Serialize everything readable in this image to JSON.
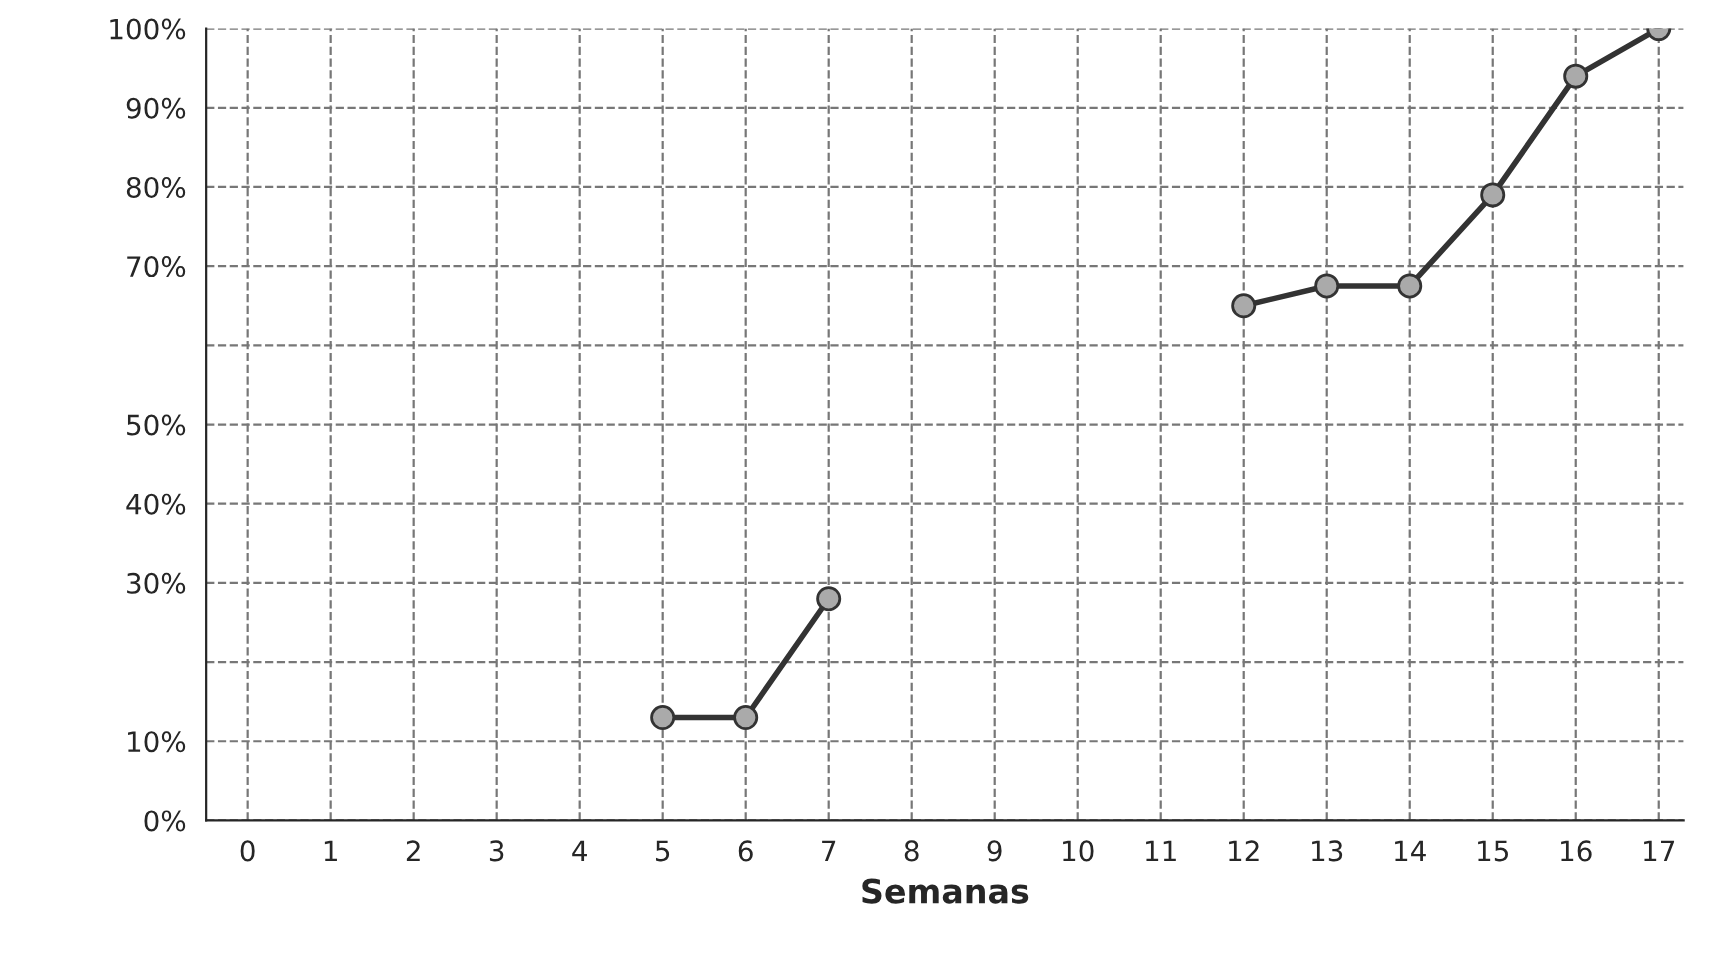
{
  "chart_data": {
    "type": "line",
    "xlabel": "Semanas",
    "categories": [
      "0",
      "1",
      "2",
      "3",
      "4",
      "5",
      "6",
      "7",
      "8",
      "9",
      "10",
      "11",
      "12",
      "13",
      "14",
      "15",
      "16",
      "17"
    ],
    "series": [
      {
        "color": "#333333",
        "values": [
          null,
          null,
          null,
          null,
          null,
          13,
          13,
          28,
          null,
          null,
          null,
          null,
          65,
          67.5,
          67.5,
          79,
          94,
          100
        ]
      }
    ],
    "ylim": [
      0,
      100
    ],
    "yticks": [
      {
        "value": 0,
        "label": "0%"
      },
      {
        "value": 10,
        "label": "10%"
      },
      {
        "value": 20,
        "label": null
      },
      {
        "value": 30,
        "label": "30%"
      },
      {
        "value": 40,
        "label": "40%"
      },
      {
        "value": 50,
        "label": "50%"
      },
      {
        "value": 60,
        "label": null
      },
      {
        "value": 70,
        "label": "70%"
      },
      {
        "value": 80,
        "label": "80%"
      },
      {
        "value": 90,
        "label": "90%"
      },
      {
        "value": 100,
        "label": "100%"
      }
    ],
    "grid": true,
    "marker": "circle",
    "line_style": "solid",
    "legend": false
  }
}
